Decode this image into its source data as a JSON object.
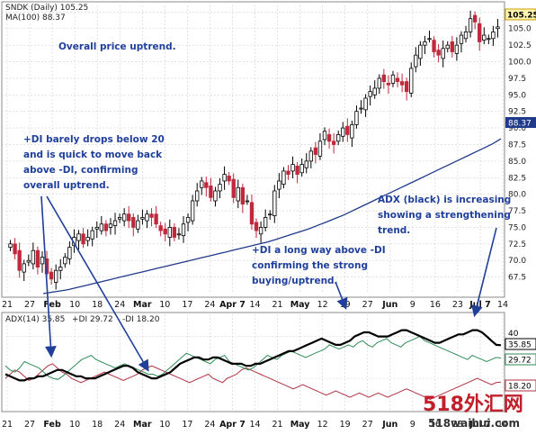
{
  "title": "SNDK (Daily) 105.25",
  "price_legend": "MA(100) 88.37",
  "indicator_legend": {
    "adx": "ADX(14) 35.85",
    "plus_di": "+DI 29.72",
    "minus_di": "-DI 18.20"
  },
  "price_badges": {
    "last": "105.25",
    "ma": "88.37"
  },
  "indicator_badges": {
    "adx": "35.85",
    "plus_di": "29.72",
    "minus_di": "18.20",
    "level40": "40"
  },
  "annotations": {
    "uptrend": "Overall price uptrend.",
    "di_drop": [
      "+DI barely drops below 20",
      "and is quick to move back",
      "above -DI, confirming",
      "overall uptrend."
    ],
    "di_above": [
      "+DI a long way above -DI",
      "confirming the strong",
      "buying/uptrend."
    ],
    "adx": [
      "ADX (black) is increasing",
      "showing a strengthening",
      "trend."
    ]
  },
  "watermark": {
    "top": "518外汇网",
    "bottom": "518waihui.com"
  },
  "colors": {
    "up_candle": "#ffffff",
    "down_candle": "#c0283c",
    "ma_line": "#1f3a8a",
    "adx": "#000000",
    "plus_di": "#2e8b57",
    "minus_di": "#b03040",
    "annotation": "#1f3f9a",
    "grid": "#d0d0d0",
    "badge_last": "#c8a000"
  },
  "chart_data": [
    {
      "type": "candlestick",
      "title": "SNDK (Daily) 105.25",
      "ylim": [
        65.0,
        108.5
      ],
      "yticks": [
        "67.5",
        "70.0",
        "72.5",
        "75.0",
        "77.5",
        "80.0",
        "82.5",
        "85.0",
        "87.5",
        "90.0",
        "92.5",
        "95.0",
        "97.5",
        "100.0",
        "102.5",
        "105.0",
        "107.5"
      ],
      "x_tick_labels": [
        "21",
        "27",
        "Feb",
        "10",
        "18",
        "24",
        "Mar",
        "10",
        "17",
        "24",
        "Apr 7",
        "14",
        "21",
        "May",
        "12",
        "19",
        "27",
        "Jun",
        "9",
        "16",
        "23",
        "Jul 7",
        "14"
      ],
      "close_series": [
        72.5,
        71.0,
        68.5,
        69.5,
        70.0,
        71.5,
        69.0,
        70.5,
        68.0,
        67.2,
        68.5,
        69.0,
        70.5,
        72.0,
        73.5,
        74.0,
        72.5,
        73.5,
        74.5,
        75.0,
        75.5,
        74.5,
        75.5,
        76.0,
        76.5,
        77.0,
        76.0,
        75.0,
        76.0,
        76.5,
        77.0,
        76.5,
        75.5,
        74.5,
        74.0,
        75.0,
        73.5,
        74.0,
        75.5,
        76.5,
        79.0,
        80.5,
        82.0,
        81.0,
        79.5,
        80.5,
        81.5,
        83.0,
        82.0,
        79.5,
        81.0,
        78.5,
        79.0,
        75.5,
        74.5,
        75.0,
        76.5,
        77.0,
        80.5,
        82.0,
        83.5,
        83.0,
        84.5,
        83.0,
        84.5,
        85.0,
        86.5,
        86.0,
        88.0,
        89.5,
        88.0,
        87.5,
        89.0,
        90.0,
        89.0,
        90.5,
        92.5,
        93.0,
        94.5,
        95.5,
        96.0,
        97.5,
        97.0,
        96.5,
        98.0,
        97.0,
        96.5,
        95.5,
        99.0,
        101.0,
        102.5,
        103.0,
        103.5,
        101.5,
        101.0,
        102.0,
        102.5,
        101.5,
        102.5,
        104.0,
        104.5,
        106.5,
        106.0,
        103.0,
        104.0,
        103.5,
        104.5,
        105.25
      ],
      "ma100_series": [
        65.0,
        65.2,
        65.4,
        65.6,
        65.9,
        66.2,
        66.5,
        66.8,
        67.1,
        67.4,
        67.7,
        68.0,
        68.3,
        68.6,
        68.9,
        69.2,
        69.5,
        69.8,
        70.1,
        70.4,
        70.7,
        71.0,
        71.3,
        71.6,
        71.9,
        72.2,
        72.5,
        72.8,
        73.2,
        73.6,
        74.0,
        74.4,
        74.8,
        75.3,
        75.8,
        76.3,
        76.8,
        77.4,
        78.0,
        78.6,
        79.2,
        79.8,
        80.4,
        81.0,
        81.6,
        82.2,
        82.8,
        83.4,
        84.0,
        84.6,
        85.2,
        85.8,
        86.4,
        87.0,
        87.6,
        88.37
      ],
      "ma100_label": "MA(100) 88.37"
    },
    {
      "type": "line",
      "title": "ADX(14) 35.85 +DI 29.72 -DI 18.20",
      "ylim": [
        5,
        45
      ],
      "yticks": [
        "40"
      ],
      "series": [
        {
          "name": "ADX(14)",
          "last": 35.85,
          "values": [
            22,
            21,
            20,
            19,
            19,
            20,
            20,
            21,
            21,
            22,
            23,
            24,
            24,
            23,
            22,
            21,
            21,
            20,
            20,
            20,
            21,
            22,
            23,
            24,
            25,
            26,
            26,
            25,
            23,
            22,
            21,
            20,
            20,
            21,
            22,
            23,
            25,
            27,
            28,
            29,
            30,
            30,
            29,
            29,
            30,
            30,
            29,
            28,
            27,
            27,
            27,
            26,
            26,
            27,
            27,
            28,
            29,
            30,
            31,
            32,
            33,
            33,
            34,
            35,
            36,
            37,
            38,
            39,
            38,
            37,
            36,
            36,
            37,
            38,
            40,
            41,
            42,
            42,
            41,
            40,
            40,
            40,
            41,
            42,
            43,
            43,
            42,
            41,
            40,
            39,
            38,
            37,
            37,
            38,
            39,
            40,
            41,
            41,
            42,
            43,
            43,
            42,
            40,
            38,
            36,
            35.85
          ]
        },
        {
          "name": "+DI",
          "last": 29.72,
          "values": [
            26,
            24,
            23,
            25,
            28,
            27,
            26,
            25,
            23,
            21,
            20,
            19.5,
            21,
            23,
            25,
            27,
            29,
            30,
            31,
            29,
            28,
            27,
            26,
            25,
            26,
            27,
            26,
            25,
            24,
            23,
            22,
            22,
            21,
            22,
            24,
            26,
            28,
            30,
            32,
            31,
            30,
            29,
            28,
            27,
            29,
            30,
            31,
            28,
            27,
            26,
            25,
            24,
            25,
            27,
            29,
            31,
            30,
            29,
            31,
            32,
            33,
            32,
            31,
            30,
            31,
            32,
            33,
            34,
            36,
            35,
            34,
            35,
            36,
            35,
            37,
            38,
            36,
            35,
            37,
            38,
            39,
            37,
            36,
            35,
            37,
            38,
            39,
            40,
            38,
            37,
            36,
            35,
            34,
            33,
            32,
            31,
            30,
            29,
            31,
            30,
            29,
            28,
            29,
            30,
            29.72
          ]
        },
        {
          "name": "-DI",
          "last": 18.2,
          "values": [
            20,
            22,
            24,
            23,
            21,
            19,
            20,
            22,
            24,
            26,
            27,
            25,
            23,
            22,
            20,
            19,
            18,
            19,
            20,
            21,
            22,
            23,
            22,
            21,
            20,
            19,
            20,
            21,
            22,
            24,
            25,
            26,
            25,
            24,
            23,
            22,
            21,
            20,
            19,
            18,
            19,
            20,
            21,
            22,
            20,
            19,
            18,
            20,
            21,
            22,
            24,
            25,
            24,
            23,
            22,
            21,
            20,
            19,
            18,
            17,
            16,
            15,
            16,
            17,
            16,
            15,
            14,
            13,
            12,
            13,
            14,
            13,
            12,
            11,
            12,
            13,
            12,
            11,
            12,
            13,
            12,
            11,
            12,
            13,
            14,
            15,
            14,
            13,
            12,
            11,
            10,
            11,
            12,
            13,
            14,
            15,
            16,
            17,
            18,
            19,
            20,
            19,
            18,
            17,
            18,
            18.2
          ]
        }
      ]
    }
  ]
}
